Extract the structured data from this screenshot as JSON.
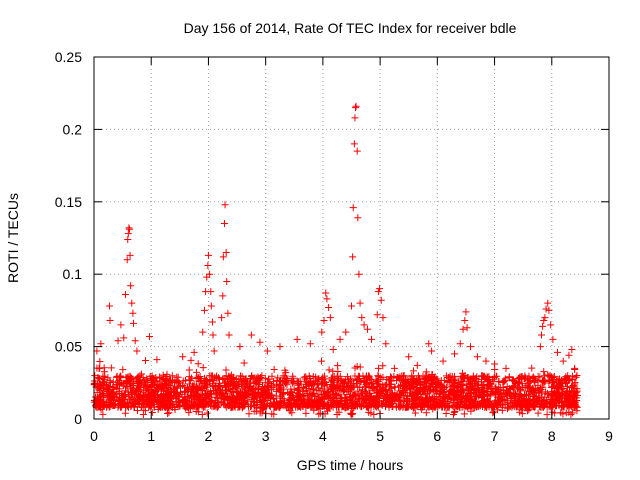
{
  "chart_data": {
    "type": "scatter",
    "title": "Day 156 of 2014, Rate Of TEC Index for receiver bdle",
    "xlabel": "GPS time / hours",
    "ylabel": "ROTI / TECUs",
    "xlim": [
      0,
      9
    ],
    "ylim": [
      0,
      0.25
    ],
    "x_ticks": [
      "0",
      "1",
      "2",
      "3",
      "4",
      "5",
      "6",
      "7",
      "8",
      "9"
    ],
    "y_ticks": [
      "0",
      "0.05",
      "0.1",
      "0.15",
      "0.2",
      "0.25"
    ],
    "grid": true,
    "marker": "+",
    "color": "#ff0000",
    "data_span_hours": [
      0,
      8.45
    ],
    "baseline": {
      "typical_low": 0.008,
      "typical_high": 0.03,
      "density_per_hour": 360
    },
    "series": [
      {
        "name": "ROTI",
        "points": [
          [
            0.05,
            0.047
          ],
          [
            0.1,
            0.035
          ],
          [
            0.12,
            0.052
          ],
          [
            0.27,
            0.078
          ],
          [
            0.28,
            0.068
          ],
          [
            0.42,
            0.054
          ],
          [
            0.47,
            0.065
          ],
          [
            0.52,
            0.056
          ],
          [
            0.55,
            0.086
          ],
          [
            0.58,
            0.11
          ],
          [
            0.59,
            0.124
          ],
          [
            0.6,
            0.128
          ],
          [
            0.61,
            0.132
          ],
          [
            0.62,
            0.131
          ],
          [
            0.63,
            0.113
          ],
          [
            0.64,
            0.092
          ],
          [
            0.66,
            0.08
          ],
          [
            0.68,
            0.073
          ],
          [
            0.69,
            0.066
          ],
          [
            0.72,
            0.054
          ],
          [
            0.75,
            0.047
          ],
          [
            0.97,
            0.057
          ],
          [
            1.1,
            0.041
          ],
          [
            1.55,
            0.043
          ],
          [
            1.75,
            0.046
          ],
          [
            1.9,
            0.06
          ],
          [
            1.93,
            0.075
          ],
          [
            1.95,
            0.088
          ],
          [
            1.97,
            0.098
          ],
          [
            1.99,
            0.106
          ],
          [
            2.0,
            0.113
          ],
          [
            2.02,
            0.1
          ],
          [
            2.04,
            0.088
          ],
          [
            2.05,
            0.078
          ],
          [
            2.07,
            0.067
          ],
          [
            2.08,
            0.058
          ],
          [
            2.1,
            0.047
          ],
          [
            2.23,
            0.07
          ],
          [
            2.25,
            0.085
          ],
          [
            2.26,
            0.112
          ],
          [
            2.28,
            0.135
          ],
          [
            2.29,
            0.148
          ],
          [
            2.31,
            0.115
          ],
          [
            2.32,
            0.095
          ],
          [
            2.34,
            0.073
          ],
          [
            2.36,
            0.058
          ],
          [
            2.55,
            0.05
          ],
          [
            2.75,
            0.058
          ],
          [
            2.9,
            0.053
          ],
          [
            3.03,
            0.047
          ],
          [
            3.25,
            0.05
          ],
          [
            3.55,
            0.055
          ],
          [
            3.78,
            0.052
          ],
          [
            3.98,
            0.06
          ],
          [
            4.02,
            0.068
          ],
          [
            4.05,
            0.087
          ],
          [
            4.07,
            0.083
          ],
          [
            4.1,
            0.077
          ],
          [
            4.13,
            0.07
          ],
          [
            4.18,
            0.048
          ],
          [
            4.3,
            0.055
          ],
          [
            4.4,
            0.06
          ],
          [
            4.5,
            0.078
          ],
          [
            4.52,
            0.112
          ],
          [
            4.53,
            0.146
          ],
          [
            4.55,
            0.19
          ],
          [
            4.56,
            0.208
          ],
          [
            4.57,
            0.215
          ],
          [
            4.58,
            0.216
          ],
          [
            4.6,
            0.185
          ],
          [
            4.61,
            0.139
          ],
          [
            4.63,
            0.1
          ],
          [
            4.65,
            0.08
          ],
          [
            4.68,
            0.07
          ],
          [
            4.72,
            0.065
          ],
          [
            4.78,
            0.062
          ],
          [
            4.85,
            0.055
          ],
          [
            4.95,
            0.072
          ],
          [
            4.97,
            0.088
          ],
          [
            4.99,
            0.09
          ],
          [
            5.02,
            0.082
          ],
          [
            5.05,
            0.07
          ],
          [
            5.1,
            0.052
          ],
          [
            5.25,
            0.035
          ],
          [
            5.5,
            0.043
          ],
          [
            5.65,
            0.037
          ],
          [
            5.85,
            0.052
          ],
          [
            5.9,
            0.047
          ],
          [
            6.1,
            0.04
          ],
          [
            6.3,
            0.045
          ],
          [
            6.4,
            0.052
          ],
          [
            6.45,
            0.062
          ],
          [
            6.48,
            0.068
          ],
          [
            6.5,
            0.074
          ],
          [
            6.52,
            0.063
          ],
          [
            6.58,
            0.05
          ],
          [
            6.7,
            0.043
          ],
          [
            6.85,
            0.04
          ],
          [
            7.0,
            0.038
          ],
          [
            7.2,
            0.035
          ],
          [
            7.6,
            0.028
          ],
          [
            7.8,
            0.05
          ],
          [
            7.82,
            0.058
          ],
          [
            7.84,
            0.064
          ],
          [
            7.86,
            0.068
          ],
          [
            7.88,
            0.07
          ],
          [
            7.9,
            0.076
          ],
          [
            7.93,
            0.08
          ],
          [
            7.95,
            0.075
          ],
          [
            7.98,
            0.065
          ],
          [
            8.02,
            0.055
          ],
          [
            8.1,
            0.046
          ],
          [
            8.2,
            0.04
          ],
          [
            8.3,
            0.044
          ],
          [
            8.35,
            0.048
          ],
          [
            8.4,
            0.035
          ],
          [
            8.44,
            0.03
          ]
        ]
      }
    ]
  }
}
